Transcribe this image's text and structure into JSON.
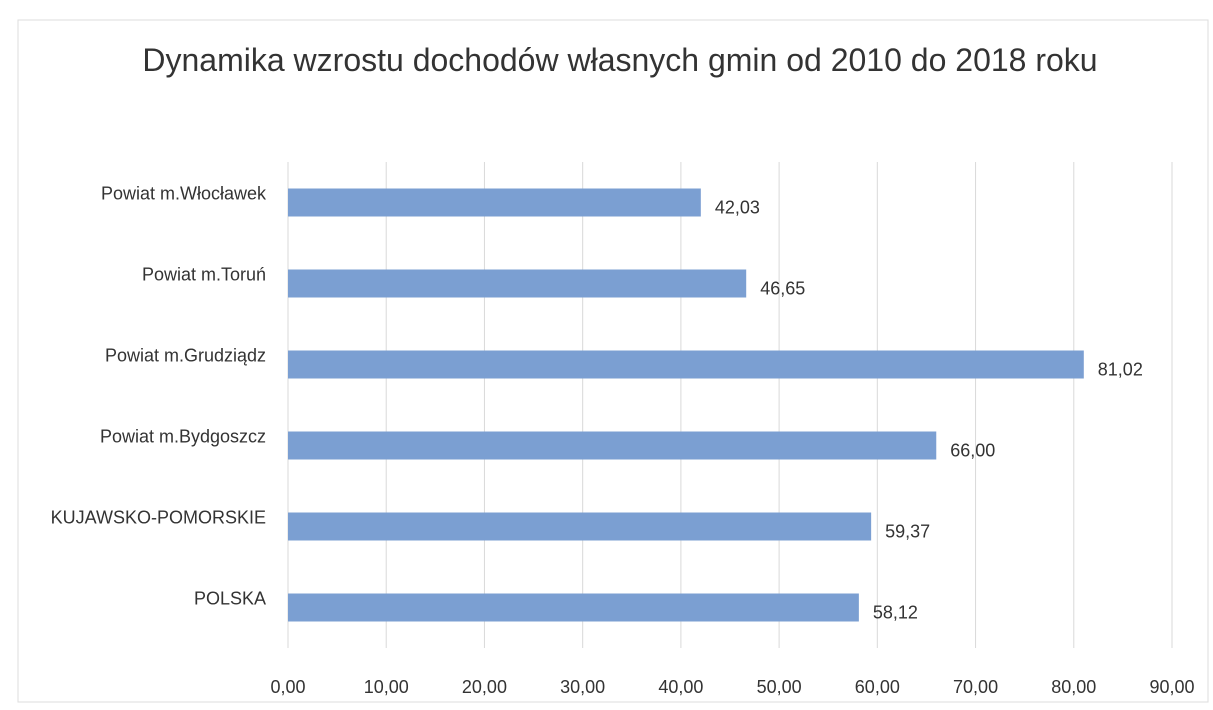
{
  "chart_data": {
    "type": "bar",
    "orientation": "horizontal",
    "title": "Dynamika wzrostu dochodów własnych gmin od 2010 do 2018 roku",
    "categories": [
      "Powiat m.Włocławek",
      "Powiat m.Toruń",
      "Powiat m.Grudziądz",
      "Powiat m.Bydgoszcz",
      "KUJAWSKO-POMORSKIE",
      "POLSKA"
    ],
    "values": [
      42.03,
      46.65,
      81.02,
      66.0,
      59.37,
      58.12
    ],
    "value_labels": [
      "42,03",
      "46,65",
      "81,02",
      "66,00",
      "59,37",
      "58,12"
    ],
    "color": "#7b9fd2",
    "xlim": [
      0,
      90
    ],
    "xticks": [
      {
        "value": 0,
        "label": "0,00"
      },
      {
        "value": 10,
        "label": "10,00"
      },
      {
        "value": 20,
        "label": "20,00"
      },
      {
        "value": 30,
        "label": "30,00"
      },
      {
        "value": 40,
        "label": "40,00"
      },
      {
        "value": 50,
        "label": "50,00"
      },
      {
        "value": 60,
        "label": "60,00"
      },
      {
        "value": 70,
        "label": "70,00"
      },
      {
        "value": 80,
        "label": "80,00"
      },
      {
        "value": 90,
        "label": "90,00"
      }
    ],
    "grid": true
  }
}
